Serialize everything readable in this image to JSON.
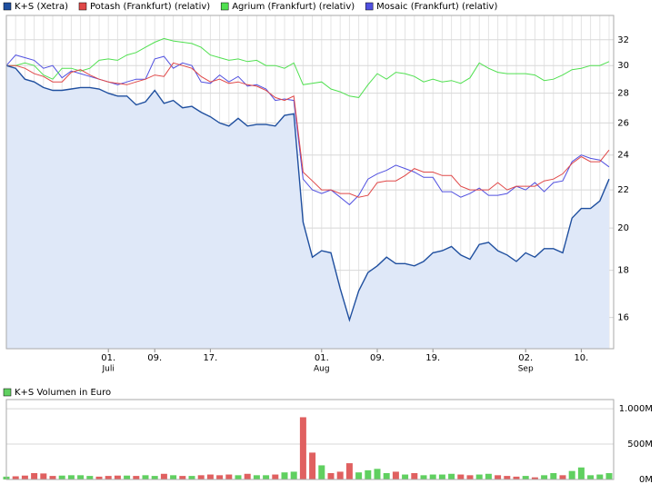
{
  "chart_data": [
    {
      "type": "line",
      "log_scale": true,
      "grid": true,
      "area_first_series": true,
      "categories": [
        null,
        null,
        null,
        null,
        null,
        null,
        null,
        null,
        null,
        null,
        null,
        "01.",
        null,
        null,
        null,
        null,
        "09.",
        null,
        null,
        null,
        null,
        null,
        "17.",
        null,
        null,
        null,
        null,
        null,
        null,
        null,
        null,
        null,
        null,
        null,
        "01.",
        null,
        null,
        null,
        null,
        null,
        "09.",
        null,
        null,
        null,
        null,
        null,
        "19.",
        null,
        null,
        null,
        null,
        null,
        null,
        null,
        null,
        null,
        "02.",
        null,
        null,
        null,
        null,
        null,
        "10.",
        null,
        null,
        null
      ],
      "category_months": [
        null,
        null,
        null,
        null,
        null,
        null,
        null,
        null,
        null,
        null,
        null,
        "Juli",
        null,
        null,
        null,
        null,
        null,
        null,
        null,
        null,
        null,
        null,
        null,
        null,
        null,
        null,
        null,
        null,
        null,
        null,
        null,
        null,
        null,
        null,
        "Aug",
        null,
        null,
        null,
        null,
        null,
        null,
        null,
        null,
        null,
        null,
        null,
        null,
        null,
        null,
        null,
        null,
        null,
        null,
        null,
        null,
        null,
        "Sep",
        null,
        null,
        null,
        null,
        null,
        null,
        null,
        null,
        null
      ],
      "ylim": [
        14.8,
        34
      ],
      "yticks": [
        16,
        18,
        20,
        22,
        24,
        26,
        28,
        30,
        32
      ],
      "series": [
        {
          "name": "K+S (Xetra)",
          "color": "#1f4f9f",
          "fill": "#dfe8f8",
          "values": [
            30,
            29.8,
            29.0,
            28.8,
            28.4,
            28.2,
            28.2,
            28.3,
            28.4,
            28.4,
            28.3,
            28.0,
            27.8,
            27.8,
            27.2,
            27.4,
            28.2,
            27.3,
            27.5,
            27.0,
            27.1,
            26.7,
            26.4,
            26.0,
            25.8,
            26.3,
            25.8,
            25.9,
            25.9,
            25.8,
            26.5,
            26.6,
            20.3,
            18.6,
            18.9,
            18.8,
            17.2,
            15.9,
            17.1,
            17.9,
            18.2,
            18.6,
            18.3,
            18.3,
            18.2,
            18.4,
            18.8,
            18.9,
            19.1,
            18.7,
            18.5,
            19.2,
            19.3,
            18.9,
            18.7,
            18.4,
            18.8,
            18.6,
            19.0,
            19.0,
            18.8,
            20.5,
            21.0,
            21.0,
            21.4,
            22.6
          ]
        },
        {
          "name": "Potash (Frankfurt) (relativ)",
          "color": "#e04848",
          "values": [
            30,
            30,
            29.8,
            29.4,
            29.2,
            28.8,
            28.8,
            29.5,
            29.7,
            29.3,
            29.0,
            28.8,
            28.7,
            28.6,
            28.8,
            29.0,
            29.3,
            29.2,
            30.2,
            30.0,
            29.8,
            29.2,
            28.8,
            29.0,
            28.7,
            28.8,
            28.6,
            28.5,
            28.2,
            27.7,
            27.5,
            27.8,
            23.0,
            22.5,
            22.0,
            22.0,
            21.8,
            21.8,
            21.6,
            21.7,
            22.4,
            22.5,
            22.5,
            22.8,
            23.2,
            23.0,
            23.0,
            22.8,
            22.8,
            22.2,
            22.0,
            22.0,
            22.0,
            22.4,
            22.0,
            22.2,
            22.2,
            22.2,
            22.5,
            22.6,
            22.9,
            23.5,
            23.9,
            23.6,
            23.6,
            24.3
          ]
        },
        {
          "name": "Agrium (Frankfurt) (relativ)",
          "color": "#50e050",
          "values": [
            30,
            30,
            30.2,
            30.0,
            29.3,
            29.0,
            29.8,
            29.8,
            29.6,
            29.8,
            30.4,
            30.5,
            30.4,
            30.8,
            31.0,
            31.4,
            31.8,
            32.1,
            31.9,
            31.8,
            31.7,
            31.4,
            30.8,
            30.6,
            30.4,
            30.5,
            30.3,
            30.4,
            30.0,
            30.0,
            29.8,
            30.2,
            28.6,
            28.7,
            28.8,
            28.3,
            28.1,
            27.8,
            27.7,
            28.6,
            29.4,
            29.0,
            29.5,
            29.4,
            29.2,
            28.8,
            29.0,
            28.8,
            28.9,
            28.7,
            29.1,
            30.2,
            29.8,
            29.5,
            29.4,
            29.4,
            29.4,
            29.3,
            28.9,
            29.0,
            29.3,
            29.7,
            29.8,
            30.0,
            30.0,
            30.3
          ]
        },
        {
          "name": "Mosaic (Frankfurt) (relativ)",
          "color": "#5050e0",
          "values": [
            30,
            30.8,
            30.6,
            30.4,
            29.8,
            30.0,
            29.1,
            29.6,
            29.4,
            29.2,
            29.0,
            28.8,
            28.6,
            28.8,
            29.0,
            29.0,
            30.5,
            30.7,
            29.8,
            30.2,
            30.0,
            28.8,
            28.7,
            29.3,
            28.8,
            29.2,
            28.5,
            28.6,
            28.3,
            27.5,
            27.6,
            27.5,
            22.6,
            22.0,
            21.8,
            22.0,
            21.6,
            21.2,
            21.7,
            22.6,
            22.9,
            23.1,
            23.4,
            23.2,
            23.0,
            22.7,
            22.7,
            21.9,
            21.9,
            21.6,
            21.8,
            22.1,
            21.7,
            21.7,
            21.8,
            22.2,
            22.0,
            22.4,
            21.9,
            22.4,
            22.5,
            23.6,
            24.0,
            23.8,
            23.7,
            23.3
          ]
        }
      ]
    },
    {
      "type": "bar",
      "grid": true,
      "ylim": [
        0,
        1130
      ],
      "yticks": [
        {
          "value": 1000,
          "label": "1.000M"
        },
        {
          "value": 500,
          "label": "500M"
        },
        {
          "value": 0,
          "label": "0M"
        }
      ],
      "up_color": "#60d060",
      "down_color": "#e06060",
      "series": [
        {
          "name": "K+S Volumen in Euro",
          "color": "#60d060",
          "values": [
            40,
            45,
            55,
            90,
            85,
            50,
            55,
            60,
            60,
            50,
            40,
            50,
            55,
            55,
            50,
            60,
            50,
            80,
            60,
            50,
            50,
            60,
            70,
            60,
            70,
            60,
            80,
            60,
            60,
            70,
            100,
            110,
            880,
            380,
            200,
            90,
            110,
            230,
            100,
            130,
            150,
            90,
            110,
            70,
            90,
            60,
            70,
            70,
            80,
            70,
            60,
            70,
            80,
            60,
            50,
            40,
            50,
            30,
            60,
            90,
            60,
            120,
            170,
            60,
            70,
            90
          ]
        }
      ]
    }
  ]
}
